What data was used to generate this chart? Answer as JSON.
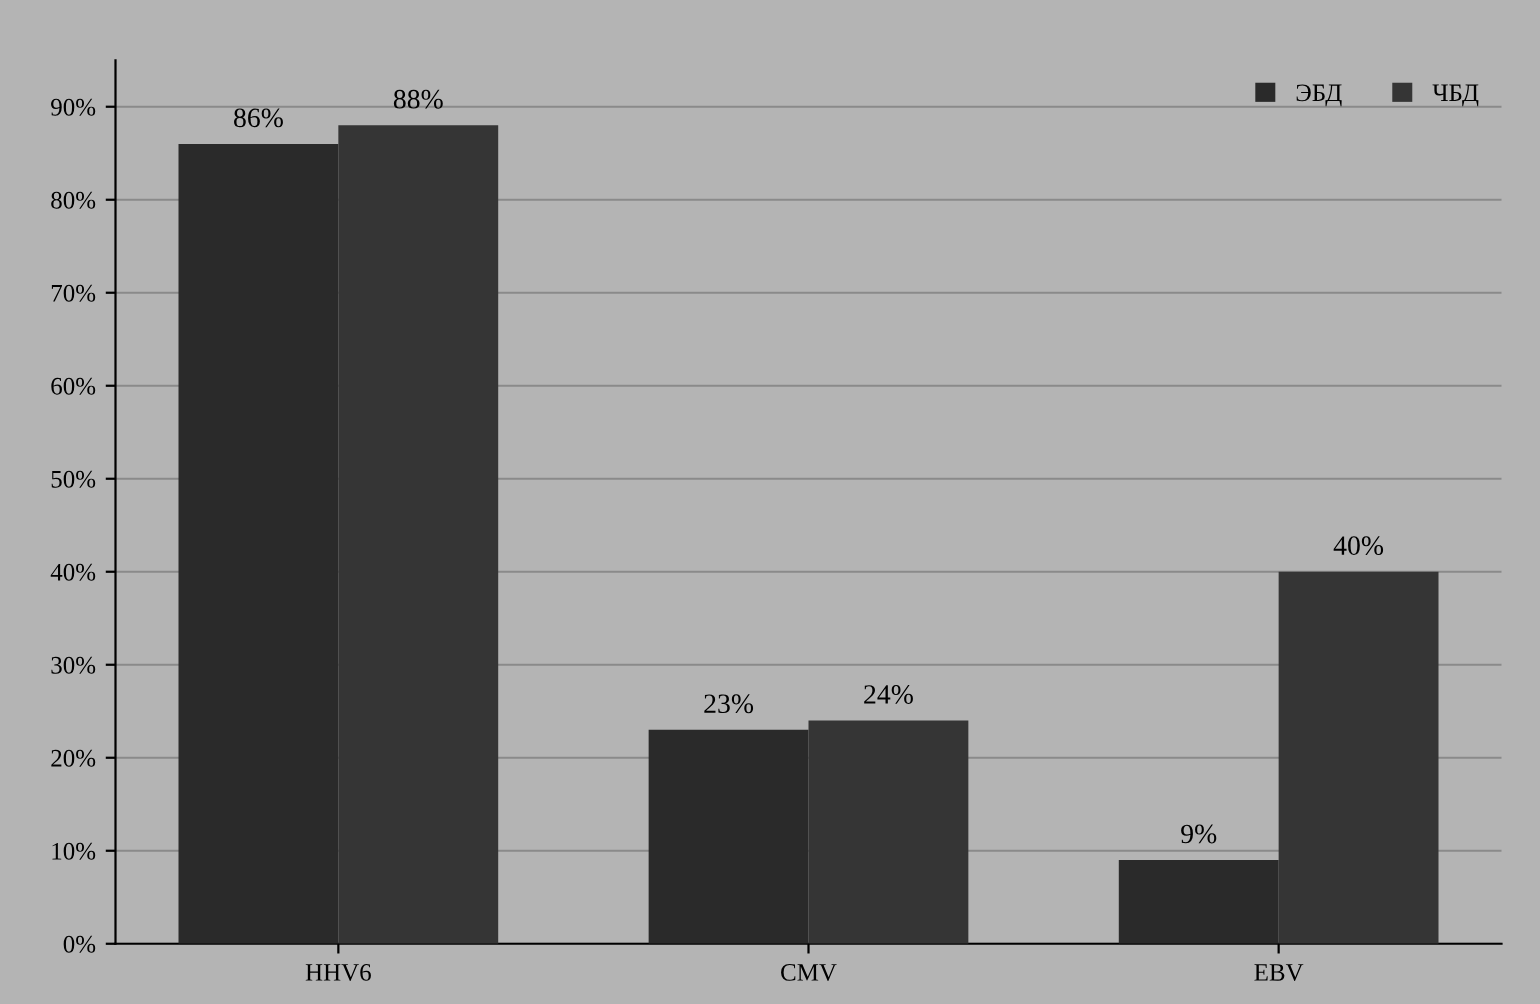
{
  "chart_data": {
    "type": "bar",
    "categories": [
      "HHV6",
      "CMV",
      "EBV"
    ],
    "series": [
      {
        "name": "ЭБД",
        "color": "#2a2a2a",
        "values": [
          86,
          23,
          9
        ],
        "value_labels": [
          "86%",
          "23%",
          "9%"
        ]
      },
      {
        "name": "ЧБД",
        "color": "#353535",
        "values": [
          88,
          24,
          40
        ],
        "value_labels": [
          "88%",
          "24%",
          "40%"
        ]
      }
    ],
    "ylim": [
      0,
      95
    ],
    "yticks": [
      {
        "value": 0,
        "label": "0%"
      },
      {
        "value": 10,
        "label": "10%"
      },
      {
        "value": 20,
        "label": "20%"
      },
      {
        "value": 30,
        "label": "30%"
      },
      {
        "value": 40,
        "label": "40%"
      },
      {
        "value": 50,
        "label": "50%"
      },
      {
        "value": 60,
        "label": "60%"
      },
      {
        "value": 70,
        "label": "70%"
      },
      {
        "value": 80,
        "label": "80%"
      },
      {
        "value": 90,
        "label": "90%"
      }
    ],
    "grid": "y",
    "legend": "top right"
  }
}
